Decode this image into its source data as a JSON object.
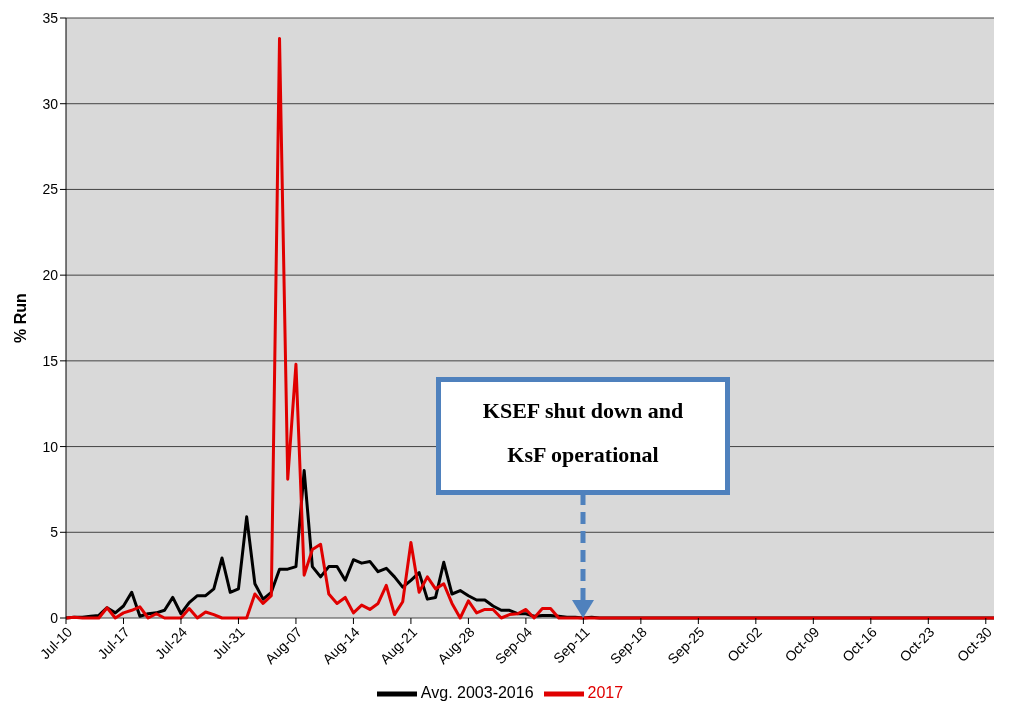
{
  "chart_data": {
    "type": "line",
    "ylabel": "% Run",
    "x": [
      "--07-10",
      "--07-11",
      "--07-12",
      "--07-13",
      "--07-14",
      "--07-15",
      "--07-16",
      "--07-17",
      "--07-18",
      "--07-19",
      "--07-20",
      "--07-21",
      "--07-22",
      "--07-23",
      "--07-24",
      "--07-25",
      "--07-26",
      "--07-27",
      "--07-28",
      "--07-29",
      "--07-30",
      "--07-31",
      "--08-01",
      "--08-02",
      "--08-03",
      "--08-04",
      "--08-05",
      "--08-06",
      "--08-07",
      "--08-08",
      "--08-09",
      "--08-10",
      "--08-11",
      "--08-12",
      "--08-13",
      "--08-14",
      "--08-15",
      "--08-16",
      "--08-17",
      "--08-18",
      "--08-19",
      "--08-20",
      "--08-21",
      "--08-22",
      "--08-23",
      "--08-24",
      "--08-25",
      "--08-26",
      "--08-27",
      "--08-28",
      "--08-29",
      "--08-30",
      "--08-31",
      "--09-01",
      "--09-02",
      "--09-03",
      "--09-04",
      "--09-05",
      "--09-06",
      "--09-07",
      "--09-08",
      "--09-09",
      "--09-10",
      "--09-11",
      "--09-12",
      "--09-13",
      "--09-14",
      "--09-15",
      "--09-16",
      "--09-17",
      "--09-18",
      "--09-19",
      "--09-20",
      "--09-21",
      "--09-22",
      "--09-23",
      "--09-24",
      "--09-25",
      "--09-26",
      "--09-27",
      "--09-28",
      "--09-29",
      "--09-30",
      "--10-01",
      "--10-02",
      "--10-03",
      "--10-04",
      "--10-05",
      "--10-06",
      "--10-07",
      "--10-08",
      "--10-09",
      "--10-10",
      "--10-11",
      "--10-12",
      "--10-13",
      "--10-14",
      "--10-15",
      "--10-16",
      "--10-17",
      "--10-18",
      "--10-19",
      "--10-20",
      "--10-21",
      "--10-22",
      "--10-23",
      "--10-24",
      "--10-25",
      "--10-26",
      "--10-27",
      "--10-28",
      "--10-29",
      "--10-30",
      "--10-31"
    ],
    "series": [
      {
        "name": "Avg. 2003-2016",
        "color": "#000000",
        "values": [
          0,
          0.05,
          0.05,
          0.1,
          0.15,
          0.6,
          0.3,
          0.7,
          1.5,
          0.1,
          0.25,
          0.3,
          0.45,
          1.2,
          0.25,
          0.9,
          1.3,
          1.3,
          1.7,
          3.5,
          1.5,
          1.7,
          5.9,
          2,
          1.1,
          1.5,
          2.85,
          2.85,
          3,
          8.6,
          3,
          2.4,
          3,
          3,
          2.2,
          3.4,
          3.2,
          3.3,
          2.7,
          2.9,
          2.4,
          1.8,
          2.2,
          2.65,
          1.1,
          1.2,
          3.25,
          1.4,
          1.6,
          1.3,
          1.05,
          1.05,
          0.7,
          0.45,
          0.45,
          0.25,
          0.25,
          0.1,
          0.15,
          0.15,
          0.1,
          0.05,
          0.05,
          0,
          0.05,
          0,
          0,
          0,
          0,
          0,
          0,
          0,
          0,
          0,
          0,
          0,
          0,
          0,
          0,
          0,
          0,
          0,
          0,
          0,
          0,
          0,
          0,
          0,
          0,
          0,
          0,
          0,
          0,
          0,
          0,
          0,
          0,
          0,
          0,
          0,
          0,
          0,
          0,
          0,
          0,
          0,
          0,
          0,
          0,
          0,
          0,
          0,
          0,
          0
        ]
      },
      {
        "name": "2017",
        "color": "#e00000",
        "values": [
          0,
          0.05,
          0,
          0,
          0,
          0.6,
          0,
          0.3,
          0.45,
          0.65,
          0,
          0.25,
          0,
          0,
          0,
          0.55,
          0,
          0.35,
          0.2,
          0,
          0,
          0,
          0,
          1.4,
          0.85,
          1.3,
          33.8,
          8.1,
          14.8,
          2.5,
          4,
          4.3,
          1.4,
          0.85,
          1.2,
          0.3,
          0.75,
          0.5,
          0.85,
          1.9,
          0.2,
          0.95,
          4.4,
          1.5,
          2.4,
          1.7,
          2,
          0.85,
          0,
          1,
          0.3,
          0.5,
          0.5,
          0,
          0.2,
          0.25,
          0.5,
          0,
          0.55,
          0.55,
          0,
          0,
          0,
          0,
          0,
          0,
          0,
          0,
          0,
          0,
          0,
          0,
          0,
          0,
          0,
          0,
          0,
          0,
          0,
          0,
          0,
          0,
          0,
          0,
          0,
          0,
          0,
          0,
          0,
          0,
          0,
          0,
          0,
          0,
          0,
          0,
          0,
          0,
          0,
          0,
          0,
          0,
          0,
          0,
          0,
          0,
          0,
          0,
          0,
          0,
          0,
          0,
          0,
          0
        ]
      }
    ],
    "xlim": [
      "--07-10",
      "--10-31"
    ],
    "xticks": [
      {
        "value": "--07-10",
        "label": "Jul-10"
      },
      {
        "value": "--07-17",
        "label": "Jul-17"
      },
      {
        "value": "--07-24",
        "label": "Jul-24"
      },
      {
        "value": "--07-31",
        "label": "Jul-31"
      },
      {
        "value": "--08-07",
        "label": "Aug-07"
      },
      {
        "value": "--08-14",
        "label": "Aug-14"
      },
      {
        "value": "--08-21",
        "label": "Aug-21"
      },
      {
        "value": "--08-28",
        "label": "Aug-28"
      },
      {
        "value": "--09-04",
        "label": "Sep-04"
      },
      {
        "value": "--09-11",
        "label": "Sep-11"
      },
      {
        "value": "--09-18",
        "label": "Sep-18"
      },
      {
        "value": "--09-25",
        "label": "Sep-25"
      },
      {
        "value": "--10-02",
        "label": "Oct-02"
      },
      {
        "value": "--10-09",
        "label": "Oct-09"
      },
      {
        "value": "--10-16",
        "label": "Oct-16"
      },
      {
        "value": "--10-23",
        "label": "Oct-23"
      },
      {
        "value": "--10-30",
        "label": "Oct-30"
      }
    ],
    "ylim": [
      0,
      35
    ],
    "yticks": [
      0,
      5,
      10,
      15,
      20,
      25,
      30,
      35
    ],
    "grid": "y",
    "legend": "bottom",
    "annotations": [
      "KSEF shut down and KsF operational"
    ]
  }
}
